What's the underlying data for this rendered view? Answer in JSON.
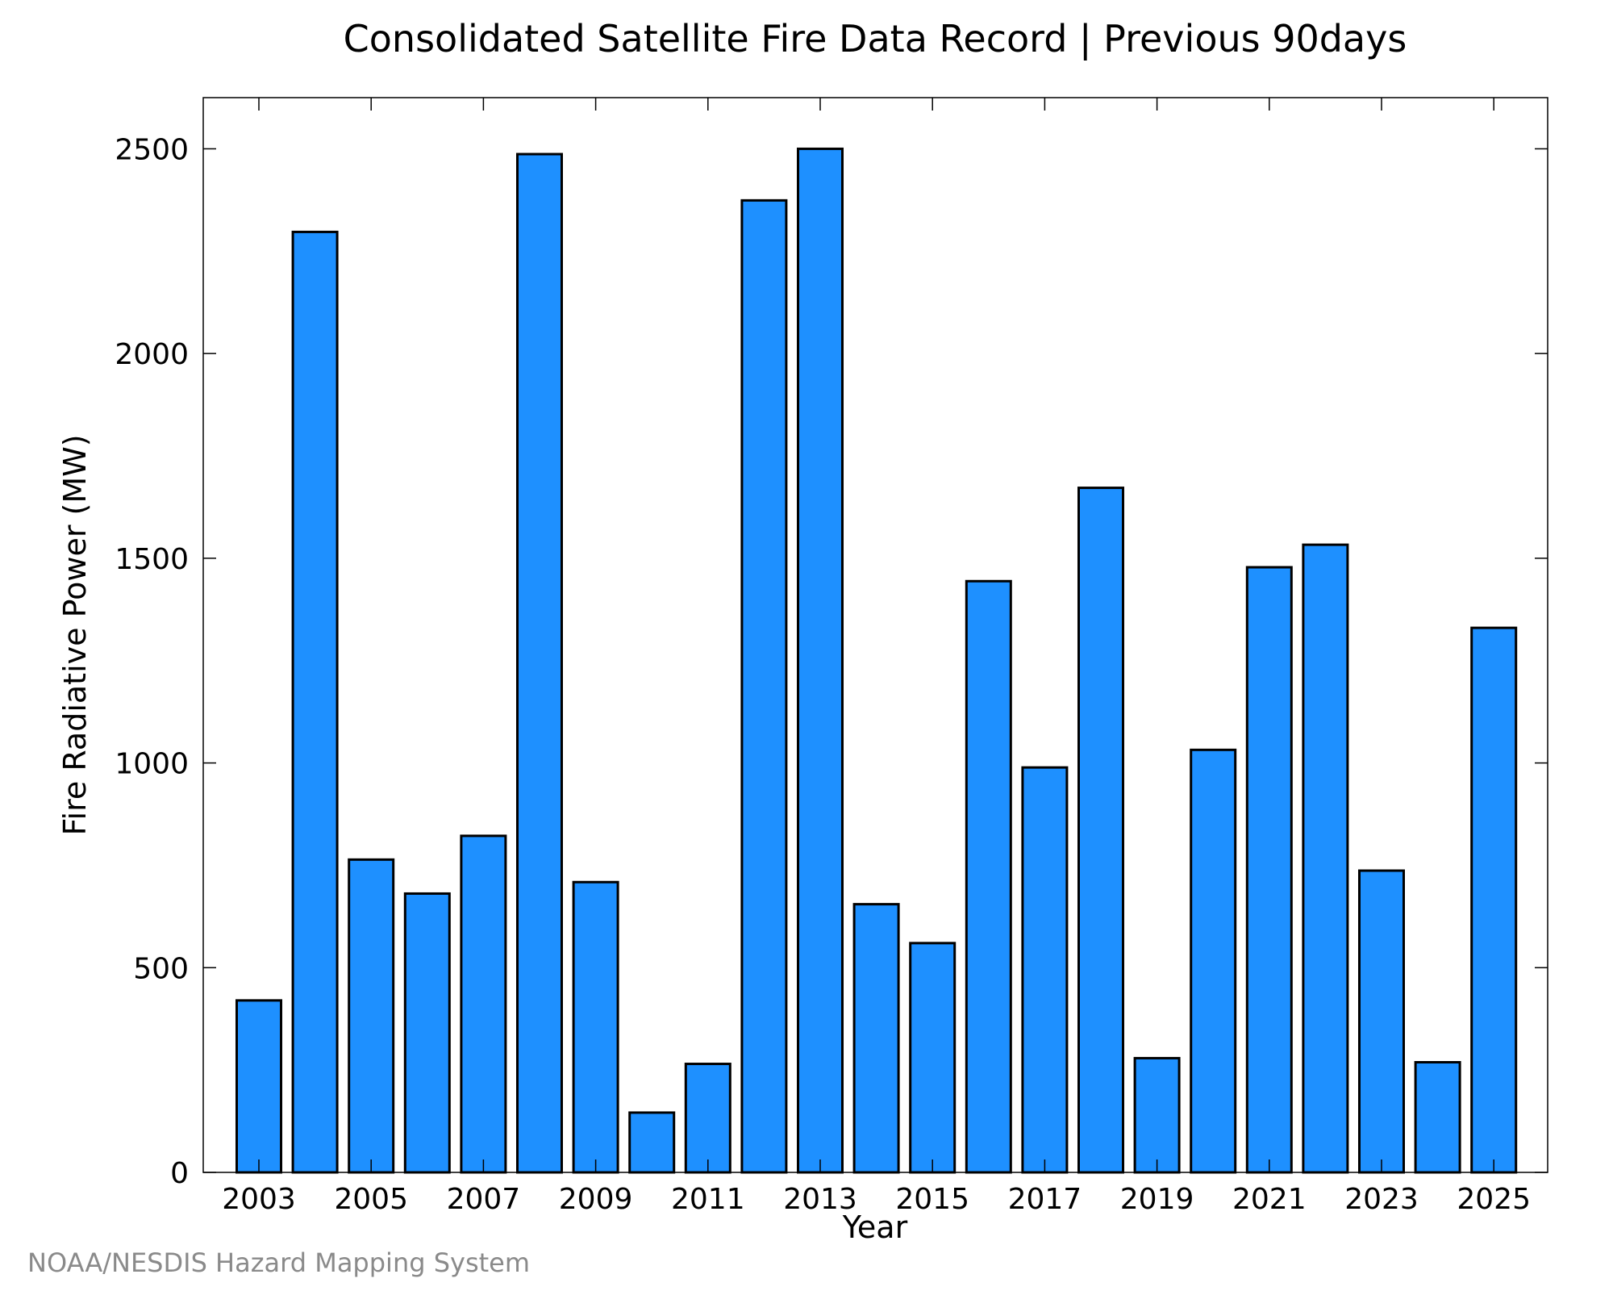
{
  "chart_data": {
    "type": "bar",
    "title": "Consolidated Satellite Fire Data Record | Previous 90days",
    "xlabel": "Year",
    "ylabel": "Fire Radiative Power (MW)",
    "categories": [
      "2003",
      "2004",
      "2005",
      "2006",
      "2007",
      "2008",
      "2009",
      "2010",
      "2011",
      "2012",
      "2013",
      "2014",
      "2015",
      "2016",
      "2017",
      "2018",
      "2019",
      "2020",
      "2021",
      "2022",
      "2023",
      "2024",
      "2025"
    ],
    "values": [
      420,
      2297,
      764,
      681,
      822,
      2487,
      709,
      146,
      265,
      2374,
      2500,
      655,
      560,
      1444,
      989,
      1672,
      279,
      1032,
      1478,
      1533,
      737,
      269,
      1330
    ],
    "x_tick_labels": [
      "2003",
      "2005",
      "2007",
      "2009",
      "2011",
      "2013",
      "2015",
      "2017",
      "2019",
      "2021",
      "2023",
      "2025"
    ],
    "y_ticks": [
      0,
      500,
      1000,
      1500,
      2000,
      2500
    ],
    "ylim": [
      0,
      2625
    ],
    "grid": false,
    "bar_color": "#1e90ff",
    "edge_color": "#000000"
  },
  "footer": {
    "credit": "NOAA/NESDIS Hazard Mapping System"
  }
}
